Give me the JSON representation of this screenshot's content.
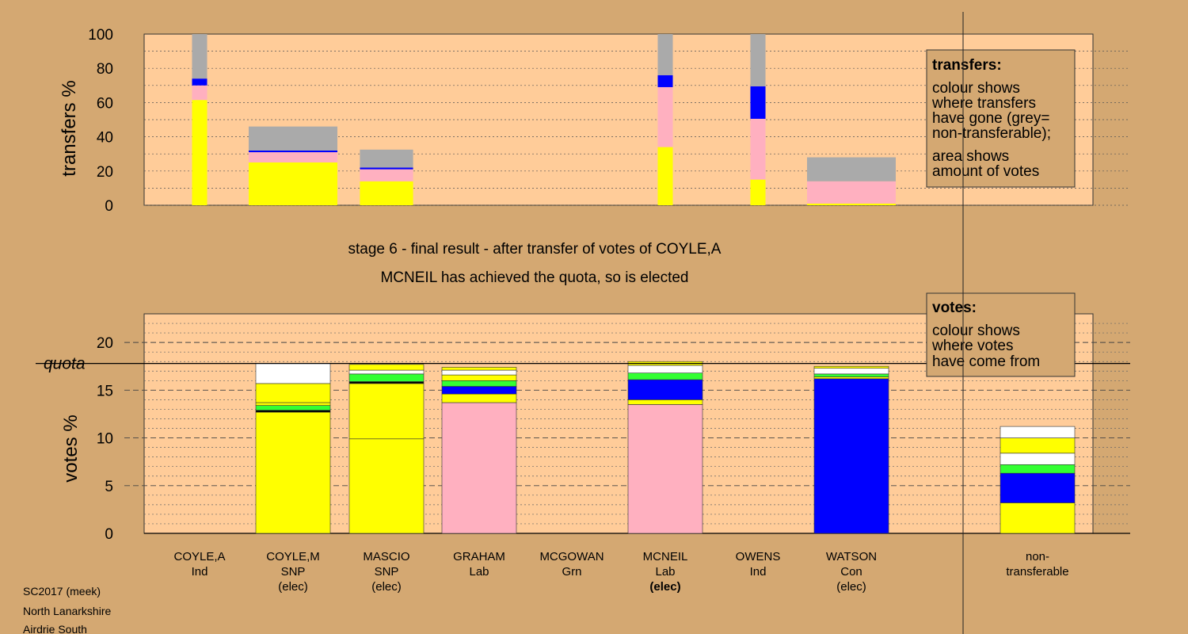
{
  "colors": {
    "background": "#D4A872",
    "plot_bg": "#FFCC99",
    "yellow": "#FFFF00",
    "pink": "#FFB0C0",
    "blue": "#0000FF",
    "green": "#33FF33",
    "white": "#FFFFFF",
    "grey": "#AAAAAA"
  },
  "stage_title": "stage 6 - final result - after transfer of votes of COYLE,A",
  "stage_subtitle": "MCNEIL has achieved the quota, so is elected",
  "footer": [
    "SC2017 (meek)",
    "North Lanarkshire",
    "Airdrie South"
  ],
  "legend_transfers": {
    "title": "transfers:",
    "lines": [
      "colour shows",
      "where transfers",
      "have gone (grey=",
      "non-transferable);",
      "area shows",
      "amount of votes"
    ]
  },
  "legend_votes": {
    "title": "votes:",
    "lines": [
      "colour shows",
      "where votes",
      "have come from"
    ]
  },
  "chart_data": [
    {
      "type": "bar",
      "name": "transfers",
      "ylabel": "transfers %",
      "ylim": [
        0,
        100
      ],
      "yticks": [
        0,
        20,
        40,
        60,
        80,
        100
      ],
      "categories": [
        "COYLE,A",
        "COYLE,M",
        "MASCIO",
        "GRAHAM",
        "MCGOWAN",
        "MCNEIL",
        "OWENS",
        "WATSON"
      ],
      "bar_width_votes": [
        17,
        100,
        60,
        0,
        0,
        17,
        17,
        100
      ],
      "stacks": [
        [
          [
            "yellow",
            61.5
          ],
          [
            "pink",
            8.5
          ],
          [
            "blue",
            4
          ],
          [
            "grey",
            26
          ]
        ],
        [
          [
            "yellow",
            25
          ],
          [
            "pink",
            6
          ],
          [
            "blue",
            1
          ],
          [
            "grey",
            14
          ]
        ],
        [
          [
            "yellow",
            14
          ],
          [
            "pink",
            7
          ],
          [
            "blue",
            1
          ],
          [
            "grey",
            10.5
          ]
        ],
        [],
        [],
        [
          [
            "yellow",
            34
          ],
          [
            "pink",
            35
          ],
          [
            "blue",
            7
          ],
          [
            "grey",
            24
          ]
        ],
        [
          [
            "yellow",
            15
          ],
          [
            "pink",
            35.5
          ],
          [
            "blue",
            19
          ],
          [
            "grey",
            30.5
          ]
        ],
        [
          [
            "yellow",
            1
          ],
          [
            "pink",
            13
          ],
          [
            "grey",
            14
          ]
        ]
      ]
    },
    {
      "type": "bar",
      "name": "votes",
      "ylabel": "votes %",
      "ylim": [
        0,
        23
      ],
      "yticks": [
        0,
        5,
        10,
        15,
        20
      ],
      "quota": 17.8,
      "quota_label": "quota",
      "categories": [
        "COYLE,A",
        "COYLE,M",
        "MASCIO",
        "GRAHAM",
        "MCGOWAN",
        "MCNEIL",
        "OWENS",
        "WATSON",
        "non-transferable"
      ],
      "category_lines": [
        [
          "COYLE,A",
          "Ind"
        ],
        [
          "COYLE,M",
          "SNP",
          "(elec)"
        ],
        [
          "MASCIO",
          "SNP",
          "(elec)"
        ],
        [
          "GRAHAM",
          "Lab"
        ],
        [
          "MCGOWAN",
          "Grn"
        ],
        [
          "MCNEIL",
          "Lab",
          "(elec)"
        ],
        [
          "OWENS",
          "Ind"
        ],
        [
          "WATSON",
          "Con",
          "(elec)"
        ],
        [
          "non-",
          "transferable"
        ]
      ],
      "bold_label_index": 5,
      "stacks": [
        [],
        [
          [
            "yellow",
            12.7
          ],
          [
            "black",
            0.2
          ],
          [
            "green",
            0.5
          ],
          [
            "yellow",
            0.3
          ],
          [
            "yellow",
            2
          ],
          [
            "white",
            2.1
          ]
        ],
        [
          [
            "yellow",
            9.9
          ],
          [
            "yellow",
            5.8
          ],
          [
            "black",
            0.2
          ],
          [
            "green",
            0.8
          ],
          [
            "white",
            0.4
          ],
          [
            "yellow",
            0.6
          ]
        ],
        [
          [
            "pink",
            13.7
          ],
          [
            "yellow",
            0.9
          ],
          [
            "blue",
            0.8
          ],
          [
            "green",
            0.6
          ],
          [
            "yellow",
            0.6
          ],
          [
            "white",
            0.5
          ],
          [
            "yellow",
            0.3
          ]
        ],
        [],
        [
          [
            "pink",
            13.5
          ],
          [
            "yellow",
            0.5
          ],
          [
            "blue",
            2.1
          ],
          [
            "green",
            0.7
          ],
          [
            "white",
            0.8
          ],
          [
            "yellow",
            0.4
          ]
        ],
        [],
        [
          [
            "blue",
            16.2
          ],
          [
            "yellow",
            0.2
          ],
          [
            "green",
            0.3
          ],
          [
            "white",
            0.6
          ],
          [
            "yellow",
            0.2
          ]
        ],
        [
          [
            "yellow",
            3.2
          ],
          [
            "blue",
            3.1
          ],
          [
            "green",
            0.9
          ],
          [
            "white",
            1.2
          ],
          [
            "yellow",
            1.6
          ],
          [
            "white",
            1.2
          ]
        ]
      ]
    }
  ]
}
